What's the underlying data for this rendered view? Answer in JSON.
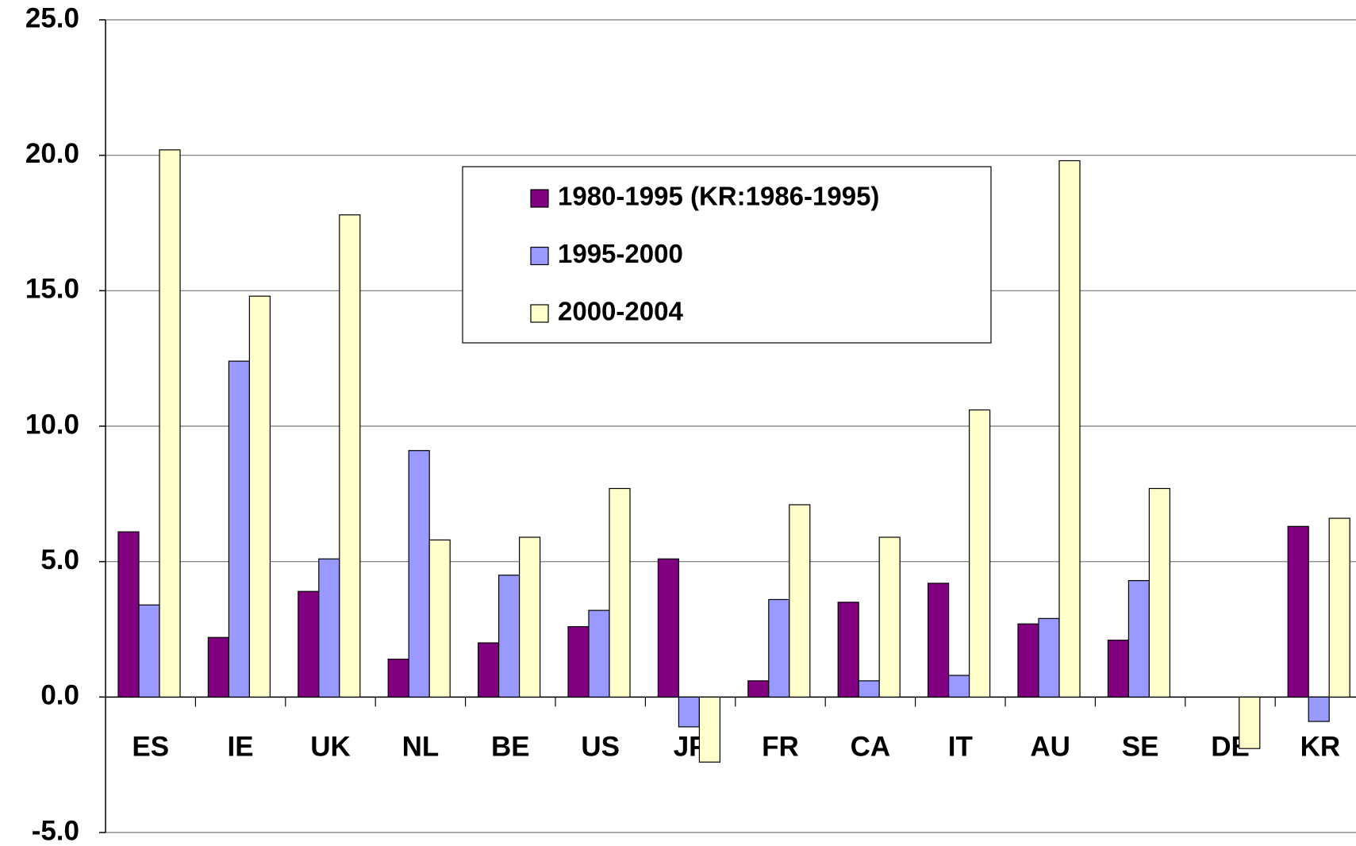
{
  "chart_data": {
    "type": "bar",
    "categories": [
      "ES",
      "IE",
      "UK",
      "NL",
      "BE",
      "US",
      "JP",
      "FR",
      "CA",
      "IT",
      "AU",
      "SE",
      "DE",
      "KR"
    ],
    "series": [
      {
        "name": "1980-1995 (KR:1986-1995)",
        "color": "#800080",
        "values": [
          6.1,
          2.2,
          3.9,
          1.4,
          2.0,
          2.6,
          5.1,
          0.6,
          3.5,
          4.2,
          2.7,
          2.1,
          null,
          6.3
        ]
      },
      {
        "name": "1995-2000",
        "color": "#9999ff",
        "values": [
          3.4,
          12.4,
          5.1,
          9.1,
          4.5,
          3.2,
          -1.1,
          3.6,
          0.6,
          0.8,
          2.9,
          4.3,
          null,
          -0.9
        ]
      },
      {
        "name": "2000-2004",
        "color": "#ffffcc",
        "values": [
          20.2,
          14.8,
          17.8,
          5.8,
          5.9,
          7.7,
          -2.4,
          7.1,
          5.9,
          10.6,
          19.8,
          7.7,
          -1.9,
          6.6
        ]
      }
    ],
    "ylim": [
      -5,
      25
    ],
    "yticks": [
      {
        "value": -5,
        "label": "-5.0"
      },
      {
        "value": 0,
        "label": "0.0"
      },
      {
        "value": 5,
        "label": "5.0"
      },
      {
        "value": 10,
        "label": "10.0"
      },
      {
        "value": 15,
        "label": "15.0"
      },
      {
        "value": 20,
        "label": "20.0"
      },
      {
        "value": 25,
        "label": "25.0"
      }
    ],
    "grid": true
  }
}
